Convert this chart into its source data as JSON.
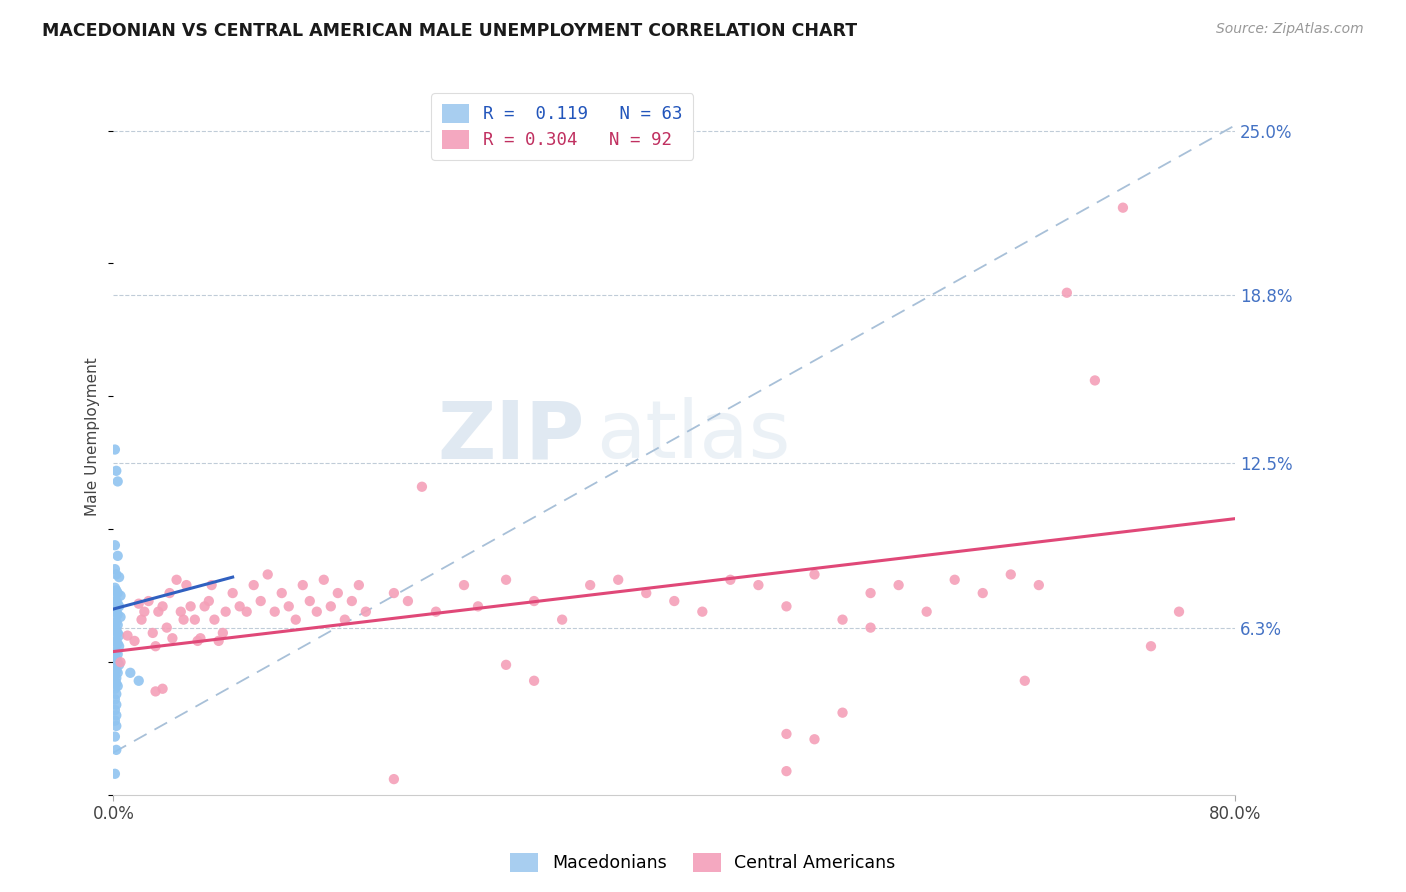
{
  "title": "MACEDONIAN VS CENTRAL AMERICAN MALE UNEMPLOYMENT CORRELATION CHART",
  "source": "Source: ZipAtlas.com",
  "ylabel": "Male Unemployment",
  "ytick_labels": [
    "25.0%",
    "18.8%",
    "12.5%",
    "6.3%"
  ],
  "ytick_values": [
    0.25,
    0.188,
    0.125,
    0.063
  ],
  "xlim": [
    0.0,
    0.8
  ],
  "ylim": [
    0.0,
    0.27
  ],
  "legend_bottom": [
    "Macedonians",
    "Central Americans"
  ],
  "macedonian_color": "#90c4f0",
  "central_american_color": "#f4a0b8",
  "trend_mac_color": "#3060c0",
  "trend_ca_color": "#e04878",
  "trend_dashed_color": "#a8c0d8",
  "mac_trend_x": [
    0.0,
    0.085
  ],
  "mac_trend_y": [
    0.07,
    0.082
  ],
  "ca_trend_x": [
    0.0,
    0.8
  ],
  "ca_trend_y": [
    0.054,
    0.104
  ],
  "dashed_trend_x": [
    0.0,
    0.8
  ],
  "dashed_trend_y": [
    0.016,
    0.252
  ],
  "macedonian_points": [
    [
      0.001,
      0.13
    ],
    [
      0.002,
      0.122
    ],
    [
      0.003,
      0.118
    ],
    [
      0.001,
      0.094
    ],
    [
      0.003,
      0.09
    ],
    [
      0.001,
      0.085
    ],
    [
      0.002,
      0.083
    ],
    [
      0.004,
      0.082
    ],
    [
      0.001,
      0.078
    ],
    [
      0.002,
      0.077
    ],
    [
      0.003,
      0.076
    ],
    [
      0.005,
      0.075
    ],
    [
      0.001,
      0.074
    ],
    [
      0.002,
      0.073
    ],
    [
      0.003,
      0.072
    ],
    [
      0.004,
      0.071
    ],
    [
      0.001,
      0.07
    ],
    [
      0.002,
      0.069
    ],
    [
      0.003,
      0.068
    ],
    [
      0.005,
      0.067
    ],
    [
      0.001,
      0.066
    ],
    [
      0.002,
      0.065
    ],
    [
      0.003,
      0.064
    ],
    [
      0.001,
      0.063
    ],
    [
      0.002,
      0.062
    ],
    [
      0.003,
      0.061
    ],
    [
      0.004,
      0.06
    ],
    [
      0.001,
      0.059
    ],
    [
      0.002,
      0.058
    ],
    [
      0.003,
      0.057
    ],
    [
      0.004,
      0.056
    ],
    [
      0.001,
      0.055
    ],
    [
      0.002,
      0.054
    ],
    [
      0.003,
      0.053
    ],
    [
      0.001,
      0.052
    ],
    [
      0.002,
      0.051
    ],
    [
      0.003,
      0.05
    ],
    [
      0.004,
      0.049
    ],
    [
      0.001,
      0.048
    ],
    [
      0.002,
      0.047
    ],
    [
      0.003,
      0.046
    ],
    [
      0.001,
      0.045
    ],
    [
      0.002,
      0.044
    ],
    [
      0.001,
      0.043
    ],
    [
      0.002,
      0.042
    ],
    [
      0.003,
      0.041
    ],
    [
      0.001,
      0.04
    ],
    [
      0.002,
      0.038
    ],
    [
      0.001,
      0.036
    ],
    [
      0.002,
      0.034
    ],
    [
      0.001,
      0.032
    ],
    [
      0.002,
      0.03
    ],
    [
      0.001,
      0.028
    ],
    [
      0.002,
      0.026
    ],
    [
      0.012,
      0.046
    ],
    [
      0.018,
      0.043
    ],
    [
      0.001,
      0.022
    ],
    [
      0.002,
      0.017
    ],
    [
      0.001,
      0.008
    ]
  ],
  "ca_points": [
    [
      0.005,
      0.05
    ],
    [
      0.01,
      0.06
    ],
    [
      0.015,
      0.058
    ],
    [
      0.018,
      0.072
    ],
    [
      0.02,
      0.066
    ],
    [
      0.022,
      0.069
    ],
    [
      0.025,
      0.073
    ],
    [
      0.028,
      0.061
    ],
    [
      0.03,
      0.056
    ],
    [
      0.032,
      0.069
    ],
    [
      0.035,
      0.071
    ],
    [
      0.038,
      0.063
    ],
    [
      0.04,
      0.076
    ],
    [
      0.042,
      0.059
    ],
    [
      0.045,
      0.081
    ],
    [
      0.048,
      0.069
    ],
    [
      0.05,
      0.066
    ],
    [
      0.052,
      0.079
    ],
    [
      0.055,
      0.071
    ],
    [
      0.058,
      0.066
    ],
    [
      0.06,
      0.058
    ],
    [
      0.062,
      0.059
    ],
    [
      0.065,
      0.071
    ],
    [
      0.068,
      0.073
    ],
    [
      0.07,
      0.079
    ],
    [
      0.072,
      0.066
    ],
    [
      0.075,
      0.058
    ],
    [
      0.078,
      0.061
    ],
    [
      0.08,
      0.069
    ],
    [
      0.085,
      0.076
    ],
    [
      0.09,
      0.071
    ],
    [
      0.095,
      0.069
    ],
    [
      0.1,
      0.079
    ],
    [
      0.105,
      0.073
    ],
    [
      0.11,
      0.083
    ],
    [
      0.115,
      0.069
    ],
    [
      0.12,
      0.076
    ],
    [
      0.125,
      0.071
    ],
    [
      0.13,
      0.066
    ],
    [
      0.135,
      0.079
    ],
    [
      0.14,
      0.073
    ],
    [
      0.145,
      0.069
    ],
    [
      0.15,
      0.081
    ],
    [
      0.155,
      0.071
    ],
    [
      0.16,
      0.076
    ],
    [
      0.165,
      0.066
    ],
    [
      0.17,
      0.073
    ],
    [
      0.175,
      0.079
    ],
    [
      0.18,
      0.069
    ],
    [
      0.2,
      0.076
    ],
    [
      0.21,
      0.073
    ],
    [
      0.22,
      0.116
    ],
    [
      0.23,
      0.069
    ],
    [
      0.25,
      0.079
    ],
    [
      0.26,
      0.071
    ],
    [
      0.28,
      0.081
    ],
    [
      0.3,
      0.073
    ],
    [
      0.32,
      0.066
    ],
    [
      0.34,
      0.079
    ],
    [
      0.36,
      0.081
    ],
    [
      0.38,
      0.076
    ],
    [
      0.4,
      0.073
    ],
    [
      0.42,
      0.069
    ],
    [
      0.44,
      0.081
    ],
    [
      0.46,
      0.079
    ],
    [
      0.48,
      0.071
    ],
    [
      0.5,
      0.083
    ],
    [
      0.52,
      0.066
    ],
    [
      0.54,
      0.076
    ],
    [
      0.56,
      0.079
    ],
    [
      0.58,
      0.069
    ],
    [
      0.6,
      0.081
    ],
    [
      0.62,
      0.076
    ],
    [
      0.64,
      0.083
    ],
    [
      0.66,
      0.079
    ],
    [
      0.68,
      0.189
    ],
    [
      0.7,
      0.156
    ],
    [
      0.72,
      0.221
    ],
    [
      0.74,
      0.056
    ],
    [
      0.76,
      0.069
    ],
    [
      0.035,
      0.04
    ],
    [
      0.03,
      0.039
    ],
    [
      0.28,
      0.049
    ],
    [
      0.3,
      0.043
    ],
    [
      0.48,
      0.023
    ],
    [
      0.5,
      0.021
    ],
    [
      0.48,
      0.009
    ],
    [
      0.52,
      0.031
    ],
    [
      0.54,
      0.063
    ],
    [
      0.2,
      0.006
    ],
    [
      0.65,
      0.043
    ]
  ]
}
